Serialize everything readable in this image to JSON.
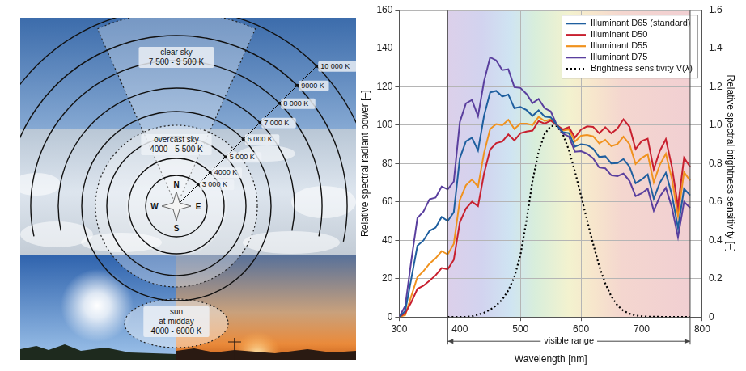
{
  "diagram": {
    "regions": [
      {
        "text": [
          "clear sky",
          "7 500 - 9 500 K"
        ]
      },
      {
        "text": [
          "overcast sky",
          "4000 - 5 500 K"
        ]
      },
      {
        "text": [
          "sun",
          "at midday",
          "4000 - 6000 K"
        ]
      }
    ],
    "rings": [
      "3 000 K",
      "4000 K",
      "5 000 K",
      "6 000 K",
      "7 000 K",
      "8 000 K",
      "9000 K",
      "10 000 K"
    ],
    "compass": [
      "N",
      "E",
      "S",
      "W"
    ]
  },
  "chart_data": {
    "type": "line",
    "x": [
      300,
      310,
      320,
      330,
      340,
      350,
      360,
      370,
      380,
      390,
      400,
      410,
      420,
      430,
      440,
      450,
      460,
      470,
      480,
      490,
      500,
      510,
      520,
      530,
      540,
      550,
      560,
      570,
      580,
      590,
      600,
      610,
      620,
      630,
      640,
      650,
      660,
      670,
      680,
      690,
      700,
      710,
      720,
      730,
      740,
      750,
      760,
      770,
      780
    ],
    "series": [
      {
        "name": "Illuminant D65 (standard)",
        "color": "#1f5f9f",
        "line_style": "solid",
        "values": [
          0.0,
          3.3,
          20.2,
          37.1,
          39.9,
          44.9,
          46.6,
          52.1,
          50.0,
          54.6,
          82.8,
          91.5,
          93.4,
          86.7,
          104.9,
          117.0,
          117.8,
          114.9,
          115.9,
          108.8,
          109.4,
          107.8,
          104.8,
          107.7,
          104.4,
          104.0,
          100.0,
          96.3,
          95.8,
          88.7,
          90.0,
          89.6,
          87.7,
          83.3,
          83.7,
          80.0,
          80.2,
          82.3,
          78.3,
          69.7,
          71.6,
          74.3,
          61.6,
          69.9,
          75.1,
          63.6,
          46.4,
          66.8,
          63.4
        ]
      },
      {
        "name": "Illuminant D50",
        "color": "#c8202f",
        "line_style": "solid",
        "values": [
          0.0,
          2.1,
          7.8,
          14.7,
          16.3,
          18.9,
          21.7,
          25.5,
          24.9,
          29.8,
          49.3,
          56.5,
          60.0,
          57.8,
          74.8,
          87.2,
          90.6,
          91.4,
          95.1,
          92.0,
          95.7,
          96.6,
          97.1,
          102.1,
          100.8,
          102.3,
          100.0,
          97.7,
          98.9,
          93.5,
          97.7,
          99.3,
          99.0,
          95.7,
          98.9,
          95.7,
          98.2,
          103.0,
          99.1,
          87.4,
          91.6,
          92.9,
          76.9,
          86.5,
          92.6,
          78.2,
          57.7,
          82.9,
          78.3
        ]
      },
      {
        "name": "Illuminant D55",
        "color": "#f0921e",
        "line_style": "solid",
        "values": [
          0.0,
          1.0,
          11.0,
          20.8,
          23.9,
          27.8,
          30.6,
          34.3,
          32.6,
          38.1,
          61.0,
          68.6,
          71.6,
          67.9,
          85.6,
          98.0,
          100.5,
          99.9,
          102.7,
          98.0,
          100.7,
          100.7,
          100.0,
          104.2,
          102.1,
          103.0,
          100.0,
          97.2,
          97.7,
          91.4,
          94.4,
          94.8,
          94.1,
          90.4,
          92.3,
          89.0,
          90.0,
          93.9,
          90.0,
          79.7,
          82.8,
          84.8,
          70.2,
          79.3,
          85.0,
          71.9,
          52.7,
          75.4,
          71.1
        ]
      },
      {
        "name": "Illuminant D75",
        "color": "#5a3f9e",
        "line_style": "solid",
        "values": [
          0.0,
          5.9,
          29.6,
          51.6,
          55.0,
          61.3,
          62.2,
          68.0,
          66.5,
          70.6,
          101.6,
          111.3,
          113.1,
          104.6,
          122.9,
          135.3,
          133.7,
          128.6,
          129.1,
          119.7,
          119.3,
          116.2,
          111.4,
          113.6,
          108.8,
          107.1,
          100.0,
          95.6,
          94.0,
          86.1,
          86.4,
          85.1,
          82.6,
          77.9,
          77.5,
          73.8,
          73.4,
          74.7,
          70.9,
          63.0,
          64.4,
          66.8,
          55.4,
          62.7,
          67.3,
          57.0,
          41.6,
          60.0,
          56.9
        ]
      },
      {
        "name": "Brightness sensitivity V(λ)",
        "color": "#000000",
        "line_style": "dotted",
        "axis": "y2",
        "values": [
          null,
          null,
          null,
          null,
          null,
          null,
          null,
          null,
          0,
          0,
          0,
          0.001,
          0.004,
          0.012,
          0.023,
          0.038,
          0.06,
          0.091,
          0.139,
          0.208,
          0.323,
          0.503,
          0.71,
          0.862,
          0.954,
          0.995,
          0.995,
          0.952,
          0.87,
          0.757,
          0.631,
          0.503,
          0.381,
          0.265,
          0.175,
          0.107,
          0.061,
          0.032,
          0.017,
          0.008,
          0.004,
          0.002,
          0.001,
          0.001,
          0,
          0,
          0,
          0,
          0
        ]
      }
    ],
    "x_label": "Wavelength [nm]",
    "y_label": "Relative spectral radiant power [–]",
    "y2_label": "Relative spectral brightness sensitivity [–]",
    "xlim": [
      300,
      800
    ],
    "xticks": [
      300,
      400,
      500,
      600,
      700,
      800
    ],
    "ylim": [
      0,
      160
    ],
    "yticks": [
      0,
      20,
      40,
      60,
      80,
      100,
      120,
      140,
      160
    ],
    "y2lim": [
      0,
      1.6
    ],
    "y2ticks": [
      0,
      0.2,
      0.4,
      0.6,
      0.8,
      {
        "value": 1,
        "label": "1.0"
      },
      1.2,
      1.4,
      1.6
    ],
    "annotation": {
      "text": "visible range",
      "range": [
        380,
        780
      ]
    },
    "grid": true,
    "legend": "upper right"
  }
}
